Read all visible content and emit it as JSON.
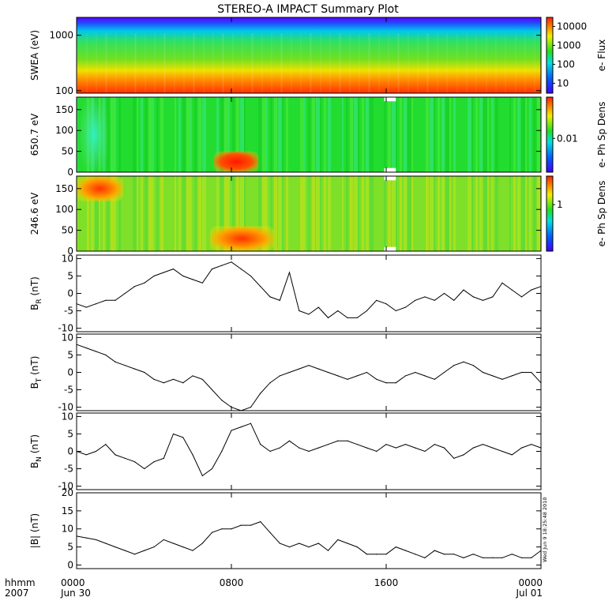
{
  "title": "STEREO-A IMPACT Summary Plot",
  "timestamp": "Wed Jun 9 18:25:48 2010",
  "x_axis": {
    "year_label": "2007",
    "hhmm_label": "hhmm",
    "ticks": [
      {
        "time": "0000",
        "date": "Jun 30",
        "hour": 0
      },
      {
        "time": "0800",
        "date": "",
        "hour": 8
      },
      {
        "time": "1600",
        "date": "",
        "hour": 16
      },
      {
        "time": "0000",
        "date": "Jul 01",
        "hour": 24
      }
    ],
    "range_hours": [
      0,
      24
    ]
  },
  "chart_data": [
    {
      "type": "heatmap",
      "panel": "swea",
      "ylabel": "SWEA (eV)",
      "yscale": "log",
      "ylim": [
        90,
        2100
      ],
      "yticks": [
        "100",
        "1000"
      ],
      "colorbar": {
        "label": "e- Flux",
        "scale": "log",
        "ticks": [
          "10",
          "100",
          "1000",
          "10000"
        ],
        "range": [
          3,
          30000
        ]
      },
      "description_bands_eV": [
        [
          1700,
          2100,
          "violet-blue"
        ],
        [
          1300,
          1700,
          "blue-cyan"
        ],
        [
          900,
          1300,
          "cyan-green"
        ],
        [
          400,
          900,
          "green"
        ],
        [
          200,
          400,
          "yellow"
        ],
        [
          90,
          200,
          "orange-red"
        ]
      ],
      "colors": {
        "low": "#3030ff",
        "mid": "#20e030",
        "high": "#ff3000"
      }
    },
    {
      "type": "heatmap",
      "panel": "pad650",
      "ylabel": "650.7 eV",
      "ylim": [
        0,
        180
      ],
      "yticks": [
        "0",
        "50",
        "100",
        "150"
      ],
      "colorbar": {
        "label": "e- Ph Sp Dens",
        "scale": "log",
        "ticks": [
          "0.01"
        ]
      },
      "features": [
        {
          "hours": [
            7.1,
            9.4
          ],
          "pitch": [
            0,
            50
          ],
          "level": "high"
        },
        {
          "hours": [
            0.2,
            1.6
          ],
          "pitch": [
            0,
            180
          ],
          "level": "low"
        },
        {
          "hours": [
            15.9,
            16.5
          ],
          "pitch": [
            170,
            180
          ],
          "level": "gap"
        },
        {
          "hours": [
            15.9,
            16.5
          ],
          "pitch": [
            0,
            10
          ],
          "level": "gap"
        }
      ]
    },
    {
      "type": "heatmap",
      "panel": "pad246",
      "ylabel": "246.6 eV",
      "ylim": [
        0,
        180
      ],
      "yticks": [
        "0",
        "50",
        "100",
        "150"
      ],
      "colorbar": {
        "label": "e- Ph Sp Dens",
        "scale": "log",
        "ticks": [
          "1"
        ]
      },
      "features": [
        {
          "hours": [
            6.9,
            10.2
          ],
          "pitch": [
            0,
            60
          ],
          "level": "high"
        },
        {
          "hours": [
            0.0,
            2.4
          ],
          "pitch": [
            120,
            180
          ],
          "level": "high"
        },
        {
          "hours": [
            15.9,
            16.5
          ],
          "pitch": [
            170,
            180
          ],
          "level": "gap"
        },
        {
          "hours": [
            15.9,
            16.5
          ],
          "pitch": [
            0,
            10
          ],
          "level": "gap"
        }
      ]
    },
    {
      "type": "line",
      "panel": "br",
      "ylabel": "B",
      "ylabel_sub": "R",
      "ylabel_unit": " (nT)",
      "ylim": [
        -11,
        11
      ],
      "yticks": [
        "-10",
        "-5",
        "0",
        "5",
        "10"
      ],
      "x": [
        0,
        0.5,
        1,
        1.5,
        2,
        2.5,
        3,
        3.5,
        4,
        4.5,
        5,
        5.5,
        6,
        6.5,
        7,
        7.5,
        8,
        8.5,
        9,
        9.5,
        10,
        10.5,
        11,
        11.5,
        12,
        12.5,
        13,
        13.5,
        14,
        14.5,
        15,
        15.5,
        16,
        16.5,
        17,
        17.5,
        18,
        18.5,
        19,
        19.5,
        20,
        20.5,
        21,
        21.5,
        22,
        22.5,
        23,
        23.5,
        24
      ],
      "y": [
        -3,
        -4,
        -3,
        -2,
        -2,
        0,
        2,
        3,
        5,
        6,
        7,
        5,
        4,
        3,
        7,
        8,
        9,
        7,
        5,
        2,
        -1,
        -2,
        6,
        -5,
        -6,
        -4,
        -7,
        -5,
        -7,
        -7,
        -5,
        -2,
        -3,
        -5,
        -4,
        -2,
        -1,
        -2,
        0,
        -2,
        1,
        -1,
        -2,
        -1,
        3,
        1,
        -1,
        1,
        2
      ]
    },
    {
      "type": "line",
      "panel": "bt",
      "ylabel": "B",
      "ylabel_sub": "T",
      "ylabel_unit": " (nT)",
      "ylim": [
        -11,
        11
      ],
      "yticks": [
        "-10",
        "-5",
        "0",
        "5",
        "10"
      ],
      "x": [
        0,
        0.5,
        1,
        1.5,
        2,
        2.5,
        3,
        3.5,
        4,
        4.5,
        5,
        5.5,
        6,
        6.5,
        7,
        7.5,
        8,
        8.5,
        9,
        9.5,
        10,
        10.5,
        11,
        11.5,
        12,
        12.5,
        13,
        13.5,
        14,
        14.5,
        15,
        15.5,
        16,
        16.5,
        17,
        17.5,
        18,
        18.5,
        19,
        19.5,
        20,
        20.5,
        21,
        21.5,
        22,
        22.5,
        23,
        23.5,
        24
      ],
      "y": [
        8,
        7,
        6,
        5,
        3,
        2,
        1,
        0,
        -2,
        -3,
        -2,
        -3,
        -1,
        -2,
        -5,
        -8,
        -10,
        -11,
        -10,
        -6,
        -3,
        -1,
        0,
        1,
        2,
        1,
        0,
        -1,
        -2,
        -1,
        0,
        -2,
        -3,
        -3,
        -1,
        0,
        -1,
        -2,
        0,
        2,
        3,
        2,
        0,
        -1,
        -2,
        -1,
        0,
        0,
        -3
      ]
    },
    {
      "type": "line",
      "panel": "bn",
      "ylabel": "B",
      "ylabel_sub": "N",
      "ylabel_unit": " (nT)",
      "ylim": [
        -11,
        11
      ],
      "yticks": [
        "-10",
        "-5",
        "0",
        "5",
        "10"
      ],
      "x": [
        0,
        0.5,
        1,
        1.5,
        2,
        2.5,
        3,
        3.5,
        4,
        4.5,
        5,
        5.5,
        6,
        6.5,
        7,
        7.5,
        8,
        8.5,
        9,
        9.5,
        10,
        10.5,
        11,
        11.5,
        12,
        12.5,
        13,
        13.5,
        14,
        14.5,
        15,
        15.5,
        16,
        16.5,
        17,
        17.5,
        18,
        18.5,
        19,
        19.5,
        20,
        20.5,
        21,
        21.5,
        22,
        22.5,
        23,
        23.5,
        24
      ],
      "y": [
        0,
        -1,
        0,
        2,
        -1,
        -2,
        -3,
        -5,
        -3,
        -2,
        5,
        4,
        -1,
        -7,
        -5,
        0,
        6,
        7,
        8,
        2,
        0,
        1,
        3,
        1,
        0,
        1,
        2,
        3,
        3,
        2,
        1,
        0,
        2,
        1,
        2,
        1,
        0,
        2,
        1,
        -2,
        -1,
        1,
        2,
        1,
        0,
        -1,
        1,
        2,
        1
      ]
    },
    {
      "type": "line",
      "panel": "bmag",
      "ylabel": "|B| (nT)",
      "ylim": [
        -1,
        20
      ],
      "yticks": [
        "0",
        "5",
        "10",
        "15",
        "20"
      ],
      "x": [
        0,
        0.5,
        1,
        1.5,
        2,
        2.5,
        3,
        3.5,
        4,
        4.5,
        5,
        5.5,
        6,
        6.5,
        7,
        7.5,
        8,
        8.5,
        9,
        9.5,
        10,
        10.5,
        11,
        11.5,
        12,
        12.5,
        13,
        13.5,
        14,
        14.5,
        15,
        15.5,
        16,
        16.5,
        17,
        17.5,
        18,
        18.5,
        19,
        19.5,
        20,
        20.5,
        21,
        21.5,
        22,
        22.5,
        23,
        23.5,
        24
      ],
      "y": [
        8,
        7.5,
        7,
        6,
        5,
        4,
        3,
        4,
        5,
        7,
        6,
        5,
        4,
        6,
        9,
        10,
        10,
        11,
        11,
        12,
        9,
        6,
        5,
        6,
        5,
        6,
        4,
        7,
        6,
        5,
        3,
        3,
        3,
        5,
        4,
        3,
        2,
        4,
        3,
        3,
        2,
        3,
        2,
        2,
        2,
        3,
        2,
        2,
        4
      ]
    }
  ]
}
